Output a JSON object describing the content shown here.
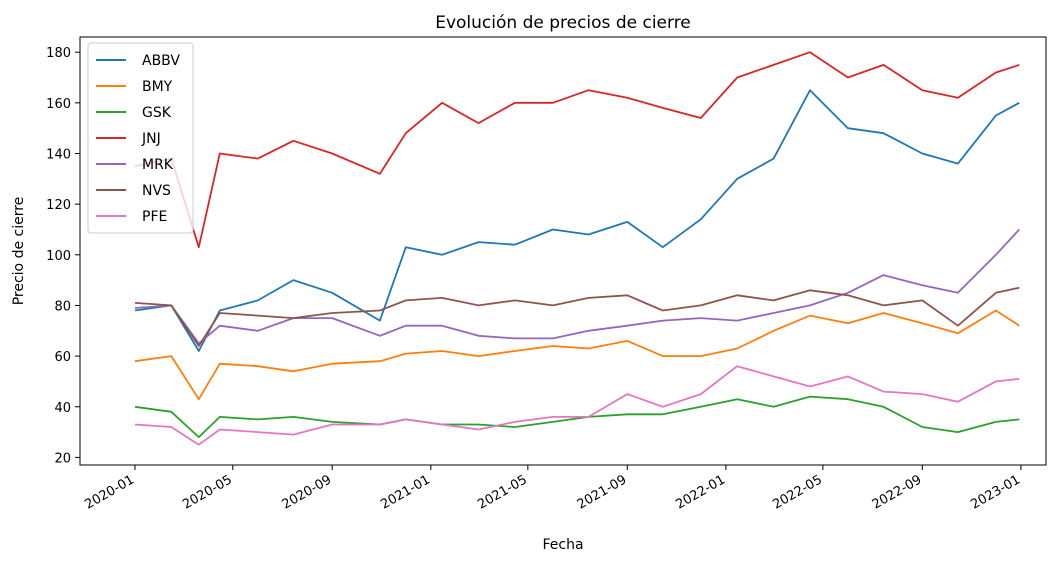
{
  "chart_data": {
    "type": "line",
    "title": "Evolución de precios de cierre",
    "xlabel": "Fecha",
    "ylabel": "Precio de cierre",
    "x_type": "date",
    "xlim": [
      "2019-10-25",
      "2023-02-01"
    ],
    "ylim": [
      17,
      186
    ],
    "x_ticks": [
      "2020-01",
      "2020-05",
      "2020-09",
      "2021-01",
      "2021-05",
      "2021-09",
      "2022-01",
      "2022-05",
      "2022-09",
      "2023-01"
    ],
    "y_ticks": [
      20,
      40,
      60,
      80,
      100,
      120,
      140,
      160,
      180
    ],
    "grid": false,
    "legend_position": "upper-left",
    "dates": [
      "2020-01-01",
      "2020-02-15",
      "2020-03-20",
      "2020-04-15",
      "2020-06-01",
      "2020-07-15",
      "2020-09-01",
      "2020-10-30",
      "2020-12-01",
      "2021-01-15",
      "2021-03-01",
      "2021-04-15",
      "2021-06-01",
      "2021-07-15",
      "2021-09-01",
      "2021-10-15",
      "2021-12-01",
      "2022-01-15",
      "2022-03-01",
      "2022-04-15",
      "2022-06-01",
      "2022-07-15",
      "2022-09-01",
      "2022-10-15",
      "2022-12-01",
      "2022-12-30"
    ],
    "series": [
      {
        "name": "ABBV",
        "color": "#1f77b4",
        "values": [
          78,
          80,
          62,
          78,
          82,
          90,
          85,
          74,
          103,
          100,
          105,
          104,
          110,
          108,
          113,
          103,
          114,
          130,
          138,
          165,
          150,
          148,
          140,
          136,
          155,
          160
        ]
      },
      {
        "name": "BMY",
        "color": "#ff7f0e",
        "values": [
          58,
          60,
          43,
          57,
          56,
          54,
          57,
          58,
          61,
          62,
          60,
          62,
          64,
          63,
          66,
          60,
          60,
          63,
          70,
          76,
          73,
          77,
          73,
          69,
          78,
          72
        ]
      },
      {
        "name": "GSK",
        "color": "#2ca02c",
        "values": [
          40,
          38,
          28,
          36,
          35,
          36,
          34,
          33,
          35,
          33,
          33,
          32,
          34,
          36,
          37,
          37,
          40,
          43,
          40,
          44,
          43,
          40,
          32,
          30,
          34,
          35
        ]
      },
      {
        "name": "JNJ",
        "color": "#d62728",
        "values": [
          135,
          138,
          103,
          140,
          138,
          145,
          140,
          132,
          148,
          160,
          152,
          160,
          160,
          165,
          162,
          158,
          154,
          170,
          175,
          180,
          170,
          175,
          165,
          162,
          172,
          175
        ]
      },
      {
        "name": "MRK",
        "color": "#9467bd",
        "values": [
          79,
          80,
          65,
          72,
          70,
          75,
          75,
          68,
          72,
          72,
          68,
          67,
          67,
          70,
          72,
          74,
          75,
          74,
          77,
          80,
          85,
          92,
          88,
          85,
          100,
          110
        ]
      },
      {
        "name": "NVS",
        "color": "#8c564b",
        "values": [
          81,
          80,
          64,
          77,
          76,
          75,
          77,
          78,
          82,
          83,
          80,
          82,
          80,
          83,
          84,
          78,
          80,
          84,
          82,
          86,
          84,
          80,
          82,
          72,
          85,
          87
        ]
      },
      {
        "name": "PFE",
        "color": "#e377c2",
        "values": [
          33,
          32,
          25,
          31,
          30,
          29,
          33,
          33,
          35,
          33,
          31,
          34,
          36,
          36,
          45,
          40,
          45,
          56,
          52,
          48,
          52,
          46,
          45,
          42,
          50,
          51
        ]
      }
    ]
  }
}
